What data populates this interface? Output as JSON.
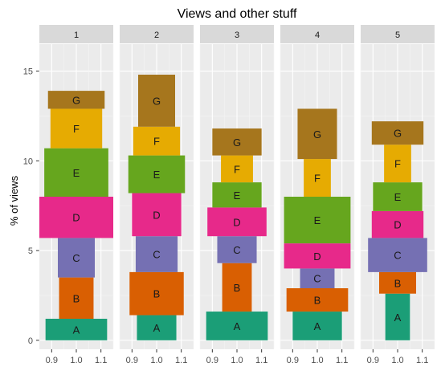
{
  "chart_data": {
    "type": "bar",
    "title": "Views and other stuff",
    "xlabel": "",
    "ylabel": "% of views",
    "ylim": [
      -0.5,
      16.5
    ],
    "yticks": [
      0,
      5,
      10,
      15
    ],
    "xticks": [
      "0.9",
      "1.0",
      "1.1"
    ],
    "xlim": [
      0.85,
      1.15
    ],
    "grid": true,
    "legend": "none",
    "colors": {
      "A": "#1b9e77",
      "B": "#d95f02",
      "C": "#7570b3",
      "D": "#e7298a",
      "E": "#66a61e",
      "F": "#e6ab02",
      "G": "#a6761d"
    },
    "panels": [
      {
        "label": "1",
        "segments": [
          {
            "name": "A",
            "start": 0.0,
            "end": 1.2,
            "width": 0.25
          },
          {
            "name": "B",
            "start": 1.2,
            "end": 3.5,
            "width": 0.14
          },
          {
            "name": "C",
            "start": 3.5,
            "end": 5.7,
            "width": 0.15
          },
          {
            "name": "D",
            "start": 5.7,
            "end": 8.0,
            "width": 0.3
          },
          {
            "name": "E",
            "start": 8.0,
            "end": 10.7,
            "width": 0.26
          },
          {
            "name": "F",
            "start": 10.7,
            "end": 12.9,
            "width": 0.21
          },
          {
            "name": "G",
            "start": 12.9,
            "end": 13.9,
            "width": 0.23
          }
        ]
      },
      {
        "label": "2",
        "segments": [
          {
            "name": "A",
            "start": 0.0,
            "end": 1.4,
            "width": 0.16
          },
          {
            "name": "B",
            "start": 1.4,
            "end": 3.8,
            "width": 0.22
          },
          {
            "name": "C",
            "start": 3.8,
            "end": 5.8,
            "width": 0.17
          },
          {
            "name": "D",
            "start": 5.8,
            "end": 8.2,
            "width": 0.2
          },
          {
            "name": "E",
            "start": 8.2,
            "end": 10.3,
            "width": 0.23
          },
          {
            "name": "F",
            "start": 10.3,
            "end": 11.9,
            "width": 0.19
          },
          {
            "name": "G",
            "start": 11.9,
            "end": 14.8,
            "width": 0.15
          }
        ]
      },
      {
        "label": "3",
        "segments": [
          {
            "name": "A",
            "start": 0.0,
            "end": 1.6,
            "width": 0.25
          },
          {
            "name": "B",
            "start": 1.6,
            "end": 4.3,
            "width": 0.12
          },
          {
            "name": "C",
            "start": 4.3,
            "end": 5.8,
            "width": 0.16
          },
          {
            "name": "D",
            "start": 5.8,
            "end": 7.4,
            "width": 0.24
          },
          {
            "name": "E",
            "start": 7.4,
            "end": 8.8,
            "width": 0.2
          },
          {
            "name": "F",
            "start": 8.8,
            "end": 10.3,
            "width": 0.13
          },
          {
            "name": "G",
            "start": 10.3,
            "end": 11.8,
            "width": 0.2
          }
        ]
      },
      {
        "label": "4",
        "segments": [
          {
            "name": "A",
            "start": 0.0,
            "end": 1.6,
            "width": 0.2
          },
          {
            "name": "B",
            "start": 1.6,
            "end": 2.9,
            "width": 0.25
          },
          {
            "name": "C",
            "start": 2.9,
            "end": 4.0,
            "width": 0.14
          },
          {
            "name": "D",
            "start": 4.0,
            "end": 5.4,
            "width": 0.27
          },
          {
            "name": "E",
            "start": 5.4,
            "end": 8.0,
            "width": 0.27
          },
          {
            "name": "F",
            "start": 8.0,
            "end": 10.1,
            "width": 0.11
          },
          {
            "name": "G",
            "start": 10.1,
            "end": 12.9,
            "width": 0.16
          }
        ]
      },
      {
        "label": "5",
        "segments": [
          {
            "name": "A",
            "start": 0.0,
            "end": 2.6,
            "width": 0.1
          },
          {
            "name": "B",
            "start": 2.6,
            "end": 3.8,
            "width": 0.15
          },
          {
            "name": "C",
            "start": 3.8,
            "end": 5.7,
            "width": 0.24
          },
          {
            "name": "D",
            "start": 5.7,
            "end": 7.2,
            "width": 0.21
          },
          {
            "name": "E",
            "start": 7.2,
            "end": 8.8,
            "width": 0.2
          },
          {
            "name": "F",
            "start": 8.8,
            "end": 10.9,
            "width": 0.11
          },
          {
            "name": "G",
            "start": 10.9,
            "end": 12.2,
            "width": 0.21
          }
        ]
      }
    ]
  }
}
